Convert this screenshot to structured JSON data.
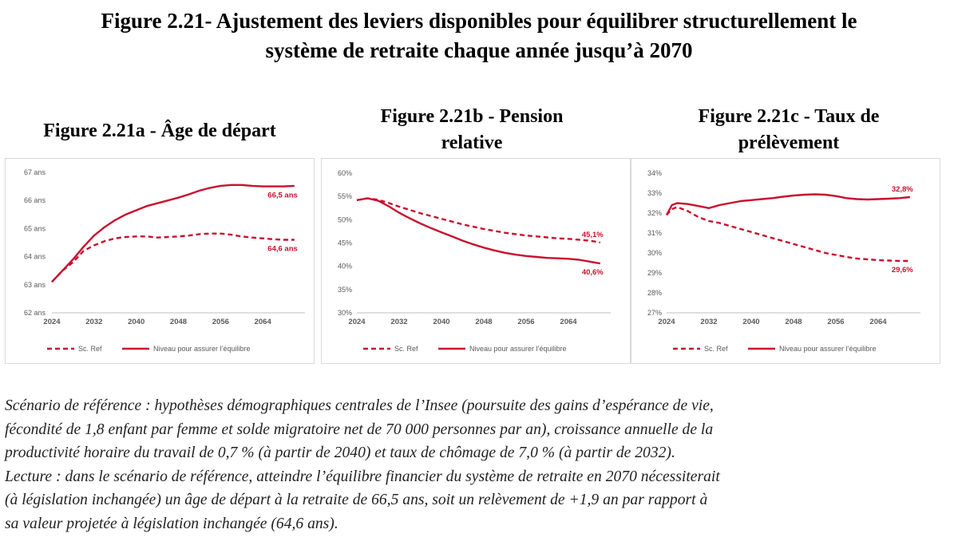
{
  "main_title": {
    "line1": "Figure 2.21- Ajustement des leviers disponibles pour équilibrer structurellement le",
    "line2": "système de retraite chaque année jusqu’à 2070"
  },
  "colors": {
    "series": "#c8102e",
    "axis": "#bfbfbf",
    "text": "#595959"
  },
  "chart_data": [
    {
      "type": "line",
      "title": "Figure 2.21a - Âge de départ",
      "xlabel": "",
      "ylabel": "",
      "x_ticks": [
        "2024",
        "2032",
        "2040",
        "2048",
        "2056",
        "2064"
      ],
      "y_ticks": [
        "62 ans",
        "63 ans",
        "64 ans",
        "65 ans",
        "66 ans",
        "67 ans"
      ],
      "xlim": [
        2024,
        2072
      ],
      "ylim": [
        62,
        67
      ],
      "legend": {
        "position": "bottom",
        "items": [
          "Sc. Ref",
          "Niveau pour assurer l’équilibre"
        ]
      },
      "series": [
        {
          "name": "Sc. Ref",
          "style": "dashed",
          "x": [
            2024,
            2026,
            2028,
            2030,
            2032,
            2034,
            2036,
            2038,
            2040,
            2042,
            2044,
            2046,
            2048,
            2050,
            2052,
            2054,
            2056,
            2058,
            2060,
            2062,
            2064,
            2066,
            2068,
            2070
          ],
          "y": [
            63.1,
            63.5,
            63.8,
            64.2,
            64.4,
            64.55,
            64.65,
            64.7,
            64.72,
            64.72,
            64.68,
            64.7,
            64.72,
            64.75,
            64.8,
            64.82,
            64.82,
            64.78,
            64.72,
            64.68,
            64.65,
            64.62,
            64.6,
            64.6
          ]
        },
        {
          "name": "Niveau pour assurer l’équilibre",
          "style": "solid",
          "x": [
            2024,
            2026,
            2028,
            2030,
            2032,
            2034,
            2036,
            2038,
            2040,
            2042,
            2044,
            2046,
            2048,
            2050,
            2052,
            2054,
            2056,
            2058,
            2060,
            2062,
            2064,
            2066,
            2068,
            2070
          ],
          "y": [
            63.1,
            63.5,
            63.9,
            64.35,
            64.75,
            65.05,
            65.3,
            65.5,
            65.65,
            65.8,
            65.9,
            66.0,
            66.1,
            66.22,
            66.35,
            66.45,
            66.52,
            66.55,
            66.55,
            66.52,
            66.5,
            66.5,
            66.5,
            66.52
          ]
        }
      ],
      "annotations": [
        {
          "text": "66,5 ans",
          "x": 2070,
          "y": 66.5
        },
        {
          "text": "64,6 ans",
          "x": 2070,
          "y": 64.6
        }
      ]
    },
    {
      "type": "line",
      "title": "Figure 2.21b - Pension relative",
      "xlabel": "",
      "ylabel": "",
      "x_ticks": [
        "2024",
        "2032",
        "2040",
        "2048",
        "2056",
        "2064"
      ],
      "y_ticks": [
        "30%",
        "35%",
        "40%",
        "45%",
        "50%",
        "55%",
        "60%"
      ],
      "xlim": [
        2024,
        2072
      ],
      "ylim": [
        30,
        60
      ],
      "legend": {
        "position": "bottom",
        "items": [
          "Sc. Ref",
          "Niveau pour assurer l’équilibre"
        ]
      },
      "series": [
        {
          "name": "Sc. Ref",
          "style": "dashed",
          "x": [
            2024,
            2026,
            2028,
            2030,
            2032,
            2034,
            2036,
            2038,
            2040,
            2042,
            2044,
            2046,
            2048,
            2050,
            2052,
            2054,
            2056,
            2058,
            2060,
            2062,
            2064,
            2066,
            2068,
            2070
          ],
          "y": [
            54.2,
            54.6,
            54.3,
            53.6,
            52.8,
            52.1,
            51.4,
            50.8,
            50.2,
            49.6,
            49.0,
            48.5,
            48.0,
            47.6,
            47.2,
            46.9,
            46.6,
            46.4,
            46.2,
            46.0,
            45.9,
            45.7,
            45.5,
            45.1
          ]
        },
        {
          "name": "Niveau pour assurer l’équilibre",
          "style": "solid",
          "x": [
            2024,
            2026,
            2028,
            2030,
            2032,
            2034,
            2036,
            2038,
            2040,
            2042,
            2044,
            2046,
            2048,
            2050,
            2052,
            2054,
            2056,
            2058,
            2060,
            2062,
            2064,
            2066,
            2068,
            2070
          ],
          "y": [
            54.2,
            54.6,
            54.1,
            52.9,
            51.5,
            50.3,
            49.2,
            48.2,
            47.3,
            46.4,
            45.5,
            44.7,
            44.0,
            43.4,
            42.9,
            42.5,
            42.2,
            42.0,
            41.8,
            41.7,
            41.6,
            41.4,
            41.0,
            40.6
          ]
        }
      ],
      "annotations": [
        {
          "text": "45,1%",
          "x": 2070,
          "y": 45.1
        },
        {
          "text": "40,6%",
          "x": 2070,
          "y": 40.6
        }
      ]
    },
    {
      "type": "line",
      "title": "Figure 2.21c - Taux de prélèvement",
      "xlabel": "",
      "ylabel": "",
      "x_ticks": [
        "2024",
        "2032",
        "2040",
        "2048",
        "2056",
        "2064"
      ],
      "y_ticks": [
        "27%",
        "28%",
        "29%",
        "30%",
        "31%",
        "32%",
        "33%",
        "34%"
      ],
      "xlim": [
        2024,
        2072
      ],
      "ylim": [
        27,
        34
      ],
      "legend": {
        "position": "bottom",
        "items": [
          "Sc. Ref",
          "Niveau pour assurer l’équilibre"
        ]
      },
      "series": [
        {
          "name": "Sc. Ref",
          "style": "dashed",
          "x": [
            2024,
            2025,
            2026,
            2028,
            2030,
            2032,
            2034,
            2036,
            2038,
            2040,
            2042,
            2044,
            2046,
            2048,
            2050,
            2052,
            2054,
            2056,
            2058,
            2060,
            2062,
            2064,
            2066,
            2068,
            2070
          ],
          "y": [
            31.9,
            32.2,
            32.3,
            32.1,
            31.8,
            31.6,
            31.5,
            31.35,
            31.2,
            31.05,
            30.9,
            30.75,
            30.6,
            30.45,
            30.3,
            30.15,
            30.0,
            29.9,
            29.8,
            29.72,
            29.68,
            29.64,
            29.62,
            29.6,
            29.6
          ]
        },
        {
          "name": "Niveau pour assurer l’équilibre",
          "style": "solid",
          "x": [
            2024,
            2025,
            2026,
            2028,
            2030,
            2032,
            2034,
            2036,
            2038,
            2040,
            2042,
            2044,
            2046,
            2048,
            2050,
            2052,
            2054,
            2056,
            2058,
            2060,
            2062,
            2064,
            2066,
            2068,
            2070
          ],
          "y": [
            31.9,
            32.4,
            32.5,
            32.45,
            32.35,
            32.25,
            32.4,
            32.5,
            32.6,
            32.65,
            32.7,
            32.75,
            32.82,
            32.88,
            32.92,
            32.94,
            32.92,
            32.85,
            32.75,
            32.7,
            32.68,
            32.7,
            32.72,
            32.75,
            32.8
          ]
        }
      ],
      "annotations": [
        {
          "text": "32,8%",
          "x": 2070,
          "y": 32.8
        },
        {
          "text": "29,6%",
          "x": 2070,
          "y": 29.6
        }
      ]
    }
  ],
  "note": {
    "line1": "Scénario de référence : hypothèses démographiques centrales de l’Insee (poursuite des gains d’espérance de vie,",
    "line2": "fécondité de 1,8 enfant par femme et solde migratoire net de 70 000 personnes par an), croissance annuelle de la",
    "line3": "productivité horaire du travail de 0,7 % (à partir de 2040) et taux de chômage de 7,0 % (à partir de 2032).",
    "line4": "Lecture : dans le scénario de référence, atteindre l’équilibre financier du système de retraite en 2070 nécessiterait",
    "line5": "(à législation inchangée) un âge de départ à la retraite de 66,5 ans, soit un relèvement de +1,9 an par rapport à",
    "line6": "sa valeur projetée à législation inchangée (64,6 ans)."
  }
}
